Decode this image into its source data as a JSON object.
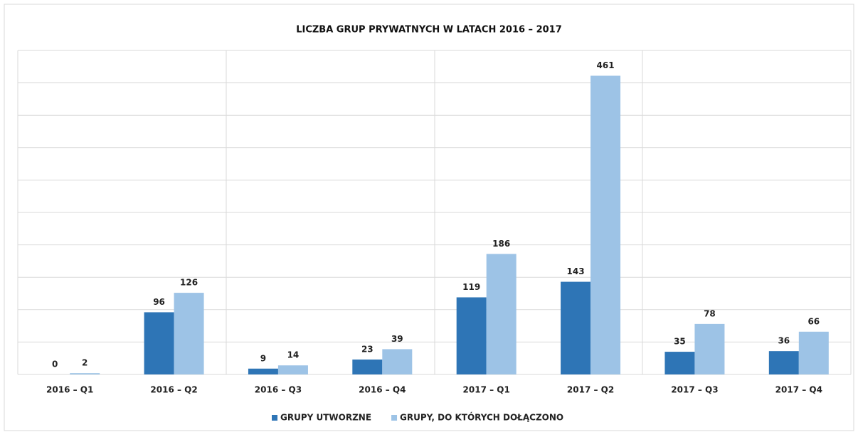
{
  "chart_data": {
    "type": "bar",
    "title": "LICZBA GRUP PRYWATNYCH W LATACH 2016 – 2017",
    "categories": [
      "2016 – Q1",
      "2016 – Q2",
      "2016 – Q3",
      "2016 – Q4",
      "2017 – Q1",
      "2017 – Q2",
      "2017 – Q3",
      "2017 – Q4"
    ],
    "series": [
      {
        "name": "GRUPY UTWORZNE",
        "color": "#2e75b6",
        "values": [
          0,
          96,
          9,
          23,
          119,
          143,
          35,
          36
        ]
      },
      {
        "name": "GRUPY, DO KTÓRYCH DOŁĄCZONO",
        "color": "#9dc3e6",
        "values": [
          2,
          126,
          14,
          39,
          186,
          461,
          78,
          66
        ]
      }
    ],
    "ylim": [
      0,
      500
    ],
    "yticks": [
      0,
      50,
      100,
      150,
      200,
      250,
      300,
      350,
      400,
      450,
      500
    ],
    "grid": true,
    "legend": "bottom"
  }
}
